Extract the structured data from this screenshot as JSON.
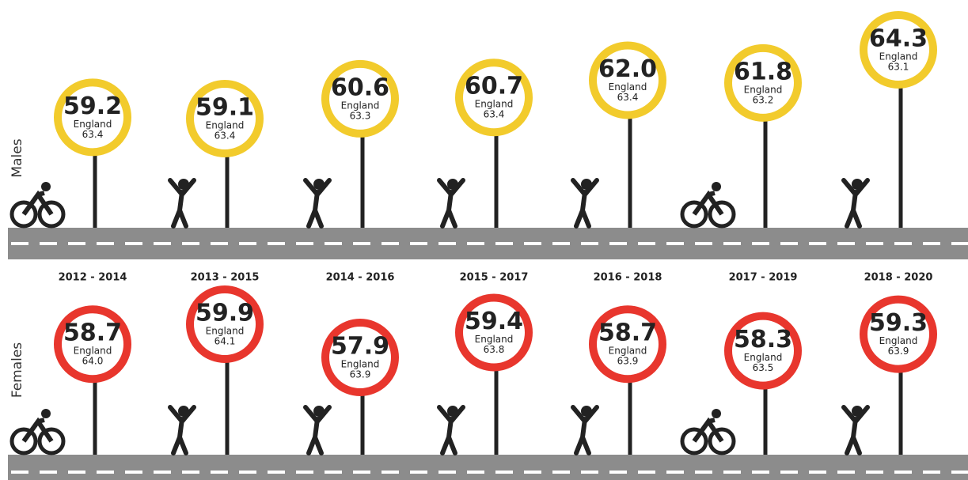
{
  "chart_data": {
    "type": "signpost",
    "categories": [
      "2012 - 2014",
      "2013 - 2015",
      "2014 - 2016",
      "2015 - 2017",
      "2016 - 2018",
      "2017 - 2019",
      "2018 - 2020"
    ],
    "benchmark_label": "England",
    "series": [
      {
        "name": "Males",
        "color": "#f2cb2c",
        "values": [
          59.2,
          59.1,
          60.6,
          60.7,
          62.0,
          61.8,
          64.3
        ],
        "value_labels": [
          "59.2",
          "59.1",
          "60.6",
          "60.7",
          "62.0",
          "61.8",
          "64.3"
        ],
        "benchmark_values": [
          63.4,
          63.4,
          63.3,
          63.4,
          63.4,
          63.2,
          63.1
        ],
        "benchmark_value_labels": [
          "63.4",
          "63.4",
          "63.3",
          "63.4",
          "63.4",
          "63.2",
          "63.1"
        ]
      },
      {
        "name": "Females",
        "color": "#e8362d",
        "values": [
          58.7,
          59.9,
          57.9,
          59.4,
          58.7,
          58.3,
          59.3
        ],
        "value_labels": [
          "58.7",
          "59.9",
          "57.9",
          "59.4",
          "58.7",
          "58.3",
          "59.3"
        ],
        "benchmark_values": [
          64.0,
          64.1,
          63.9,
          63.8,
          63.9,
          63.5,
          63.9
        ],
        "benchmark_value_labels": [
          "64.0",
          "64.1",
          "63.9",
          "63.8",
          "63.9",
          "63.5",
          "63.9"
        ]
      }
    ]
  }
}
